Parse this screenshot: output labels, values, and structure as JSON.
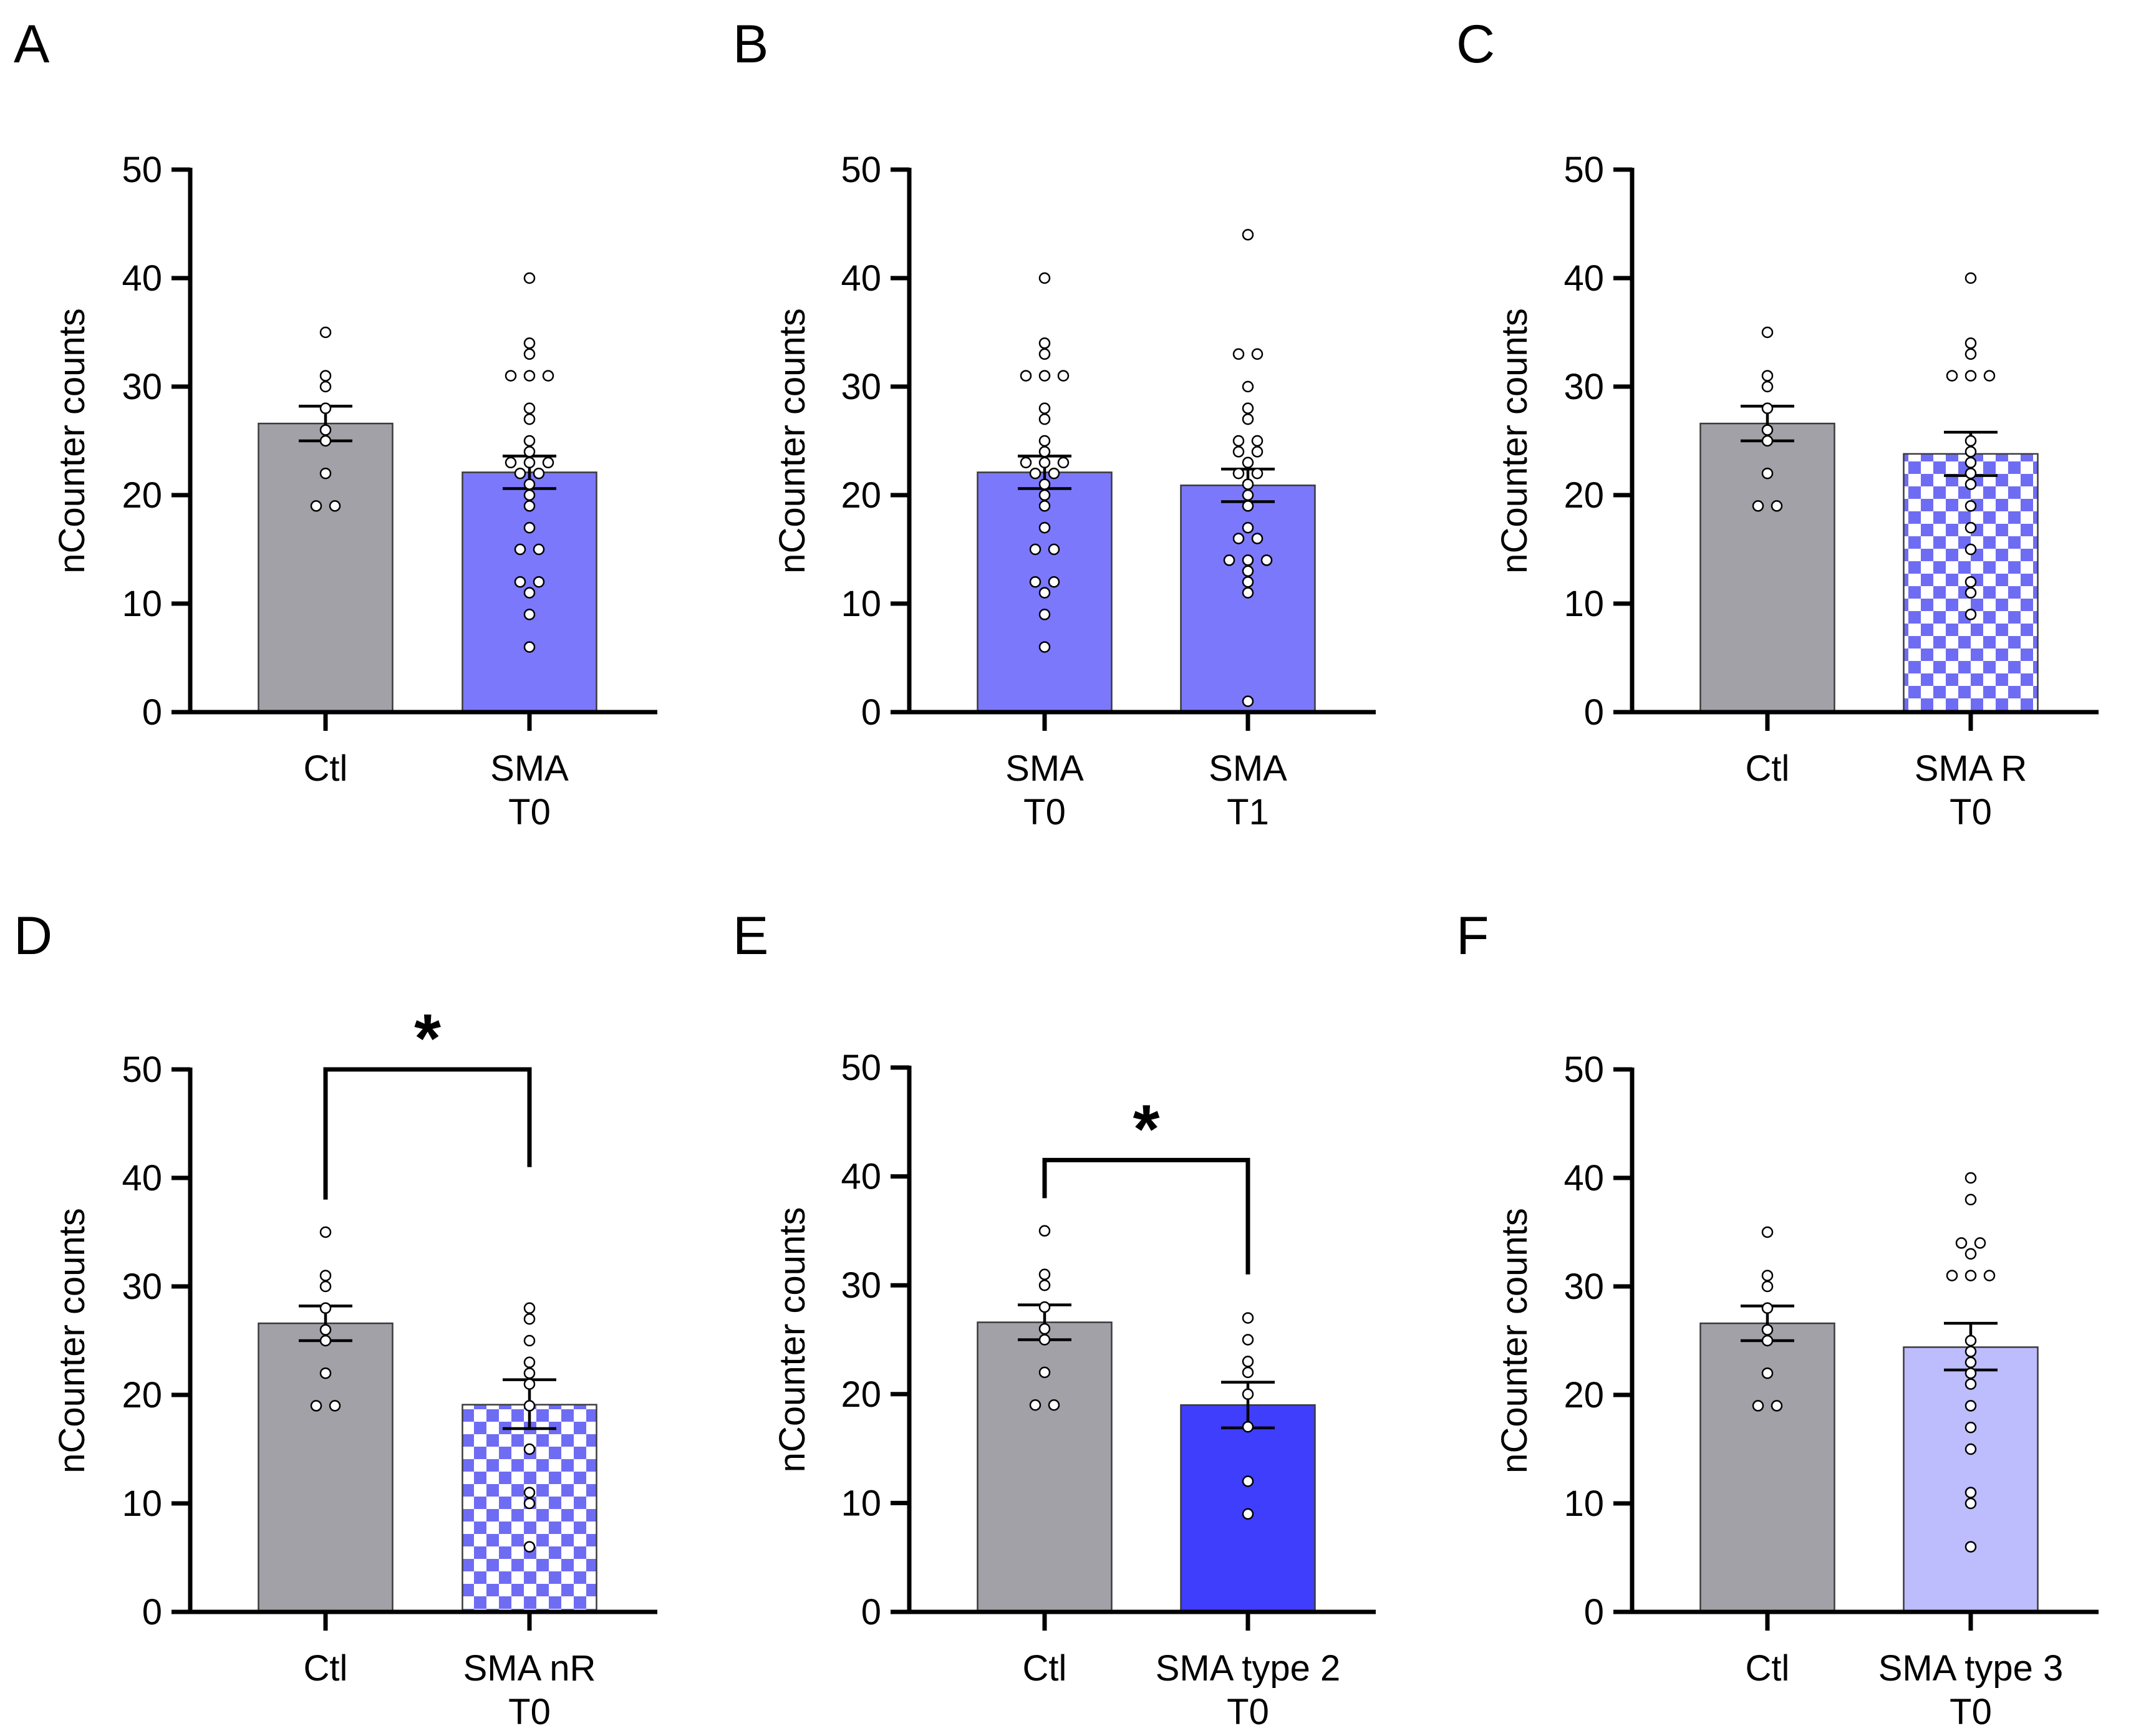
{
  "colors": {
    "control": "#a2a1a8",
    "sma_main": "#7b78fb",
    "sma_type2": "#3f3efc",
    "sma_type3": "#bdbcfc",
    "checker": "#6f6cf4",
    "axis": "#000000",
    "dot_fill": "#ffffff"
  },
  "chart_data": [
    {
      "panel": "A",
      "type": "bar",
      "ylabel": "nCounter counts",
      "ylim": [
        0,
        50
      ],
      "yticks": [
        0,
        10,
        20,
        30,
        40,
        50
      ],
      "categories": [
        {
          "label": "Ctl",
          "label_line2": "",
          "fill": "control",
          "mean": 26.6,
          "sem_low": 25.0,
          "sem_high": 28.2,
          "points": [
            35,
            31,
            30,
            28,
            26,
            25,
            22,
            19,
            19
          ]
        },
        {
          "label": "SMA",
          "label_line2": "T0",
          "fill": "sma_main",
          "mean": 22.1,
          "sem_low": 20.6,
          "sem_high": 23.6,
          "points": [
            40,
            34,
            33,
            31,
            31,
            31,
            28,
            27,
            25,
            24,
            23,
            23,
            23,
            22,
            22,
            21,
            20,
            19,
            17,
            15,
            15,
            12,
            12,
            11,
            9,
            6
          ]
        }
      ],
      "significance": null
    },
    {
      "panel": "B",
      "type": "bar",
      "ylabel": "nCounter counts",
      "ylim": [
        0,
        50
      ],
      "yticks": [
        0,
        10,
        20,
        30,
        40,
        50
      ],
      "categories": [
        {
          "label": "SMA",
          "label_line2": "T0",
          "fill": "sma_main",
          "mean": 22.1,
          "sem_low": 20.6,
          "sem_high": 23.6,
          "points": [
            40,
            34,
            33,
            31,
            31,
            31,
            28,
            27,
            25,
            24,
            23,
            23,
            23,
            22,
            22,
            21,
            20,
            19,
            17,
            15,
            15,
            12,
            12,
            11,
            9,
            6
          ]
        },
        {
          "label": "SMA",
          "label_line2": "T1",
          "fill": "sma_main",
          "mean": 20.9,
          "sem_low": 19.4,
          "sem_high": 22.4,
          "points": [
            44,
            33,
            33,
            30,
            28,
            27,
            25,
            25,
            24,
            24,
            23,
            22,
            22,
            21,
            20,
            19,
            17,
            16,
            16,
            14,
            14,
            14,
            13,
            12,
            11,
            1
          ]
        }
      ],
      "significance": null
    },
    {
      "panel": "C",
      "type": "bar",
      "ylabel": "nCounter counts",
      "ylim": [
        0,
        50
      ],
      "yticks": [
        0,
        10,
        20,
        30,
        40,
        50
      ],
      "categories": [
        {
          "label": "Ctl",
          "label_line2": "",
          "fill": "control",
          "mean": 26.6,
          "sem_low": 25.0,
          "sem_high": 28.2,
          "points": [
            35,
            31,
            30,
            28,
            26,
            25,
            22,
            19,
            19
          ]
        },
        {
          "label": "SMA R",
          "label_line2": "T0",
          "fill": "checker",
          "mean": 23.8,
          "sem_low": 21.8,
          "sem_high": 25.8,
          "points": [
            40,
            34,
            33,
            31,
            31,
            31,
            25,
            24,
            23,
            22,
            21,
            19,
            17,
            15,
            12,
            11,
            9
          ]
        }
      ],
      "significance": null
    },
    {
      "panel": "D",
      "type": "bar",
      "ylabel": "nCounter counts",
      "ylim": [
        0,
        50
      ],
      "yticks": [
        0,
        10,
        20,
        30,
        40,
        50
      ],
      "categories": [
        {
          "label": "Ctl",
          "label_line2": "",
          "fill": "control",
          "mean": 26.6,
          "sem_low": 25.0,
          "sem_high": 28.2,
          "points": [
            35,
            31,
            30,
            28,
            26,
            25,
            22,
            19,
            19
          ]
        },
        {
          "label": "SMA nR",
          "label_line2": "T0",
          "fill": "checker",
          "mean": 19.1,
          "sem_low": 16.9,
          "sem_high": 21.4,
          "points": [
            28,
            27,
            25,
            23,
            22,
            21,
            19,
            15,
            11,
            10,
            6
          ]
        }
      ],
      "significance": {
        "symbol": "*",
        "level": 50,
        "left_drop": 38,
        "right_drop": 41
      }
    },
    {
      "panel": "E",
      "type": "bar",
      "ylabel": "nCounter counts",
      "ylim": [
        0,
        50
      ],
      "yticks": [
        0,
        10,
        20,
        30,
        40,
        50
      ],
      "categories": [
        {
          "label": "Ctl",
          "label_line2": "",
          "fill": "control",
          "mean": 26.6,
          "sem_low": 25.0,
          "sem_high": 28.2,
          "points": [
            35,
            31,
            30,
            28,
            26,
            25,
            22,
            19,
            19
          ]
        },
        {
          "label": "SMA type 2",
          "label_line2": "T0",
          "fill": "sma_type2",
          "mean": 19.0,
          "sem_low": 16.9,
          "sem_high": 21.1,
          "points": [
            27,
            25,
            23,
            22,
            20,
            17,
            12,
            9
          ]
        }
      ],
      "significance": {
        "symbol": "*",
        "level": 41.5,
        "left_drop": 38,
        "right_drop": 31
      }
    },
    {
      "panel": "F",
      "type": "bar",
      "ylabel": "nCounter counts",
      "ylim": [
        0,
        50
      ],
      "yticks": [
        0,
        10,
        20,
        30,
        40,
        50
      ],
      "categories": [
        {
          "label": "Ctl",
          "label_line2": "",
          "fill": "control",
          "mean": 26.6,
          "sem_low": 25.0,
          "sem_high": 28.2,
          "points": [
            35,
            31,
            30,
            28,
            26,
            25,
            22,
            19,
            19
          ]
        },
        {
          "label": "SMA type 3",
          "label_line2": "T0",
          "fill": "sma_type3",
          "mean": 24.4,
          "sem_low": 22.3,
          "sem_high": 26.6,
          "points": [
            40,
            38,
            34,
            34,
            33,
            31,
            31,
            31,
            25,
            24,
            23,
            22,
            21,
            19,
            17,
            15,
            11,
            10,
            6
          ]
        }
      ],
      "significance": null
    }
  ]
}
